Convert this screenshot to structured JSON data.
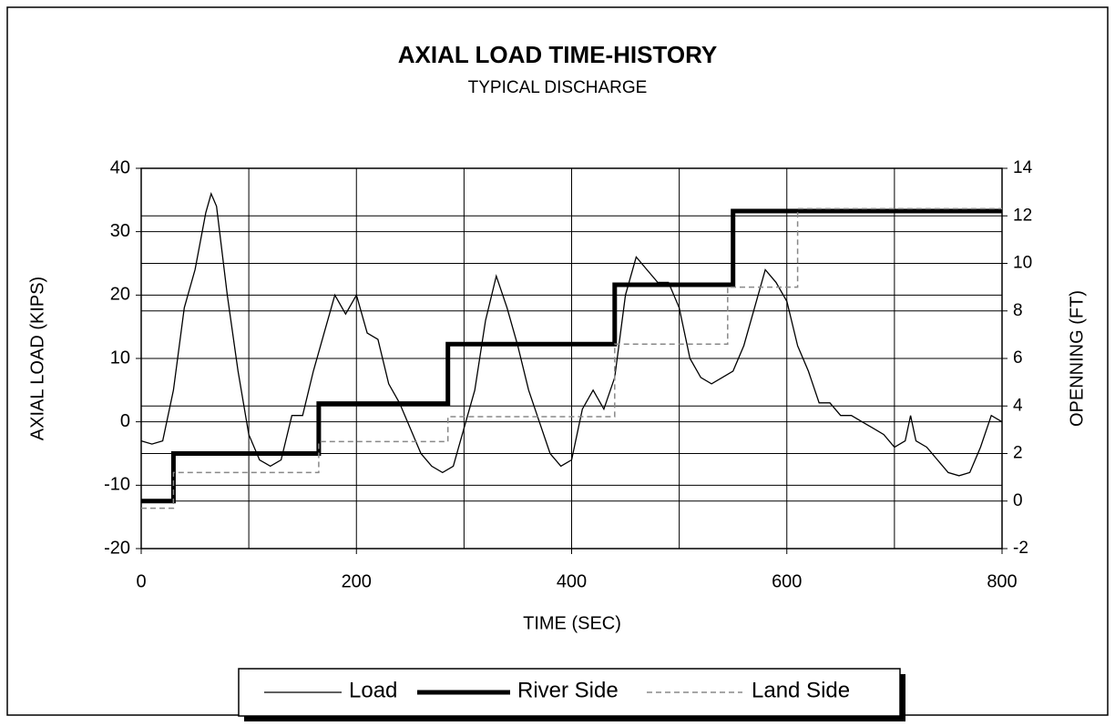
{
  "chart_data": {
    "type": "line",
    "title": "AXIAL LOAD TIME-HISTORY",
    "subtitle": "TYPICAL DISCHARGE",
    "xlabel": "TIME (SEC)",
    "ylabel": "AXIAL LOAD (KIPS)",
    "y2label": "OPENNING (FT)",
    "xlim": [
      0,
      800
    ],
    "xticks": [
      0,
      200,
      400,
      600,
      800
    ],
    "xminor": [
      100,
      300,
      500,
      700
    ],
    "ylim": [
      -20,
      40
    ],
    "yticks": [
      -20,
      -10,
      0,
      10,
      20,
      30,
      40
    ],
    "y2lim": [
      -2,
      14
    ],
    "y2ticks": [
      -2,
      0,
      2,
      4,
      6,
      8,
      10,
      12,
      14
    ],
    "grid": true,
    "legend": "bottom",
    "series": [
      {
        "name": "Load",
        "color": "#000000",
        "width": 1.3,
        "dash": "none",
        "x": [
          0,
          10,
          20,
          30,
          40,
          50,
          60,
          65,
          70,
          80,
          90,
          100,
          110,
          120,
          130,
          140,
          150,
          160,
          170,
          180,
          190,
          200,
          210,
          220,
          230,
          240,
          250,
          260,
          270,
          280,
          290,
          300,
          310,
          320,
          330,
          340,
          350,
          360,
          370,
          380,
          390,
          400,
          410,
          420,
          430,
          440,
          450,
          460,
          470,
          480,
          490,
          500,
          510,
          520,
          530,
          540,
          550,
          560,
          570,
          580,
          590,
          600,
          610,
          620,
          630,
          640,
          650,
          660,
          670,
          680,
          690,
          700,
          710,
          715,
          720,
          730,
          740,
          750,
          760,
          770,
          780,
          790,
          800
        ],
        "values": [
          -3,
          -3.5,
          -3,
          5,
          18,
          24,
          33,
          36,
          34,
          20,
          8,
          -2,
          -6,
          -7,
          -6,
          1,
          1,
          8,
          14,
          20,
          17,
          20,
          14,
          13,
          6,
          3,
          -1,
          -5,
          -7,
          -8,
          -7,
          -1,
          5,
          16,
          23,
          18,
          12,
          5,
          0,
          -5,
          -7,
          -6,
          2,
          5,
          2,
          7,
          20,
          26,
          24,
          22,
          22,
          18,
          10,
          7,
          6,
          7,
          8,
          12,
          18,
          24,
          22,
          19,
          12,
          8,
          3,
          3,
          1,
          1,
          0,
          -1,
          -2,
          -4,
          -3,
          1,
          -3,
          -4,
          -6,
          -8,
          -8.5,
          -8,
          -4,
          1,
          0
        ]
      },
      {
        "name": "River Side",
        "color": "#000000",
        "width": 5,
        "dash": "none",
        "axis": "y2",
        "x": [
          0,
          30,
          30,
          165,
          165,
          285,
          285,
          440,
          440,
          550,
          550,
          800
        ],
        "values": [
          0,
          0,
          2,
          2,
          4.1,
          4.1,
          6.6,
          6.6,
          9.1,
          9.1,
          12.2,
          12.2
        ]
      },
      {
        "name": "Land Side",
        "color": "#888888",
        "width": 1.5,
        "dash": "6 4",
        "axis": "y2",
        "x": [
          0,
          30,
          30,
          165,
          165,
          285,
          285,
          440,
          440,
          545,
          545,
          610,
          610,
          800
        ],
        "values": [
          -0.3,
          -0.3,
          1.2,
          1.2,
          2.5,
          2.5,
          3.55,
          3.55,
          6.6,
          6.6,
          9,
          9,
          12.3,
          12.3
        ]
      }
    ]
  }
}
